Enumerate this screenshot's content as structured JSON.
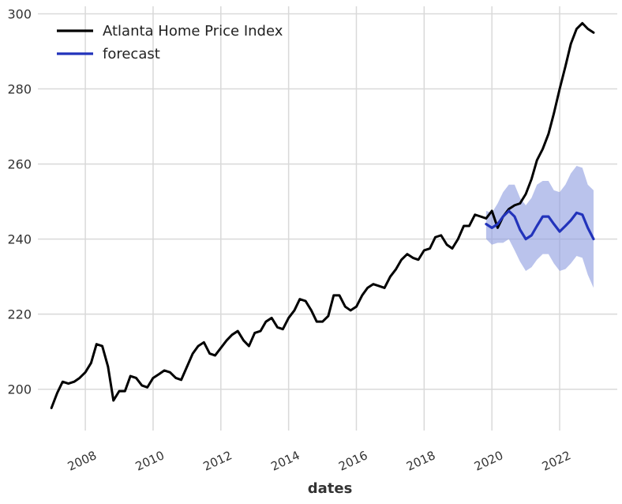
{
  "chart_data": {
    "type": "line",
    "title": "",
    "xlabel": "dates",
    "ylabel": "",
    "xlim": [
      2006.6,
      2023.7
    ],
    "ylim": [
      189,
      302
    ],
    "x_ticks": [
      2008,
      2010,
      2012,
      2014,
      2016,
      2018,
      2020,
      2022
    ],
    "x_tick_labels": [
      "2008",
      "2010",
      "2012",
      "2014",
      "2016",
      "2018",
      "2020",
      "2022"
    ],
    "y_ticks": [
      200,
      220,
      240,
      260,
      280,
      300
    ],
    "y_tick_labels": [
      "200",
      "220",
      "240",
      "260",
      "280",
      "300"
    ],
    "grid": true,
    "legend_position": "top-left",
    "series": [
      {
        "name": "Atlanta Home Price Index",
        "color": "#000000",
        "x": [
          2007.0,
          2007.17,
          2007.33,
          2007.5,
          2007.67,
          2007.83,
          2008.0,
          2008.17,
          2008.33,
          2008.5,
          2008.67,
          2008.83,
          2009.0,
          2009.17,
          2009.33,
          2009.5,
          2009.67,
          2009.83,
          2010.0,
          2010.17,
          2010.33,
          2010.5,
          2010.67,
          2010.83,
          2011.0,
          2011.17,
          2011.33,
          2011.5,
          2011.67,
          2011.83,
          2012.0,
          2012.17,
          2012.33,
          2012.5,
          2012.67,
          2012.83,
          2013.0,
          2013.17,
          2013.33,
          2013.5,
          2013.67,
          2013.83,
          2014.0,
          2014.17,
          2014.33,
          2014.5,
          2014.67,
          2014.83,
          2015.0,
          2015.17,
          2015.33,
          2015.5,
          2015.67,
          2015.83,
          2016.0,
          2016.17,
          2016.33,
          2016.5,
          2016.67,
          2016.83,
          2017.0,
          2017.17,
          2017.33,
          2017.5,
          2017.67,
          2017.83,
          2018.0,
          2018.17,
          2018.33,
          2018.5,
          2018.67,
          2018.83,
          2019.0,
          2019.17,
          2019.33,
          2019.5,
          2019.67,
          2019.83,
          2020.0,
          2020.17,
          2020.33,
          2020.5,
          2020.67,
          2020.83,
          2021.0,
          2021.17,
          2021.33,
          2021.5,
          2021.67,
          2021.83,
          2022.0,
          2022.17,
          2022.33,
          2022.5,
          2022.67,
          2022.83,
          2023.0
        ],
        "values": [
          195,
          199,
          202,
          201.5,
          202,
          203,
          204.5,
          207,
          212,
          211.5,
          206,
          197,
          199.5,
          199.5,
          203.5,
          203,
          201,
          200.5,
          203,
          204,
          205,
          204.5,
          203,
          202.5,
          206,
          209.5,
          211.5,
          212.5,
          209.5,
          209,
          211,
          213,
          214.5,
          215.5,
          213,
          211.5,
          215,
          215.5,
          218,
          219,
          216.5,
          216,
          219,
          221,
          224,
          223.5,
          221,
          218,
          218,
          219.5,
          225,
          225,
          222,
          221,
          222,
          225,
          227,
          228,
          227.5,
          227,
          230,
          232,
          234.5,
          236,
          235,
          234.5,
          237,
          237.5,
          240.5,
          241,
          238.5,
          237.5,
          240,
          243.5,
          243.5,
          246.5,
          246,
          245.5,
          247.5,
          243,
          246,
          248,
          249,
          249.5,
          252,
          256,
          261,
          264,
          268,
          273.5,
          280,
          286,
          292,
          296,
          297.5,
          296,
          295
        ]
      },
      {
        "name": "forecast",
        "color": "#2233bb",
        "band_color": "#8c9be0",
        "x": [
          2019.83,
          2020.0,
          2020.17,
          2020.33,
          2020.5,
          2020.67,
          2020.83,
          2021.0,
          2021.17,
          2021.33,
          2021.5,
          2021.67,
          2021.83,
          2022.0,
          2022.17,
          2022.33,
          2022.5,
          2022.67,
          2022.83,
          2023.0
        ],
        "values": [
          244,
          243,
          244,
          246,
          247.5,
          246,
          242.5,
          240,
          241,
          243.5,
          246,
          246,
          244,
          242,
          243.5,
          245,
          247,
          246.5,
          243,
          240
        ],
        "lower": [
          240,
          238.5,
          239,
          239,
          240,
          237,
          234,
          231.5,
          232.5,
          234.5,
          236,
          236,
          233.5,
          231.5,
          232,
          233.5,
          235.5,
          235,
          230.5,
          227
        ],
        "upper": [
          247.5,
          247,
          249.5,
          252.5,
          254.5,
          254.5,
          251,
          249,
          251,
          254.5,
          255.5,
          255.5,
          253,
          252.5,
          254.5,
          257.5,
          259.5,
          259,
          254.5,
          253
        ]
      }
    ]
  }
}
